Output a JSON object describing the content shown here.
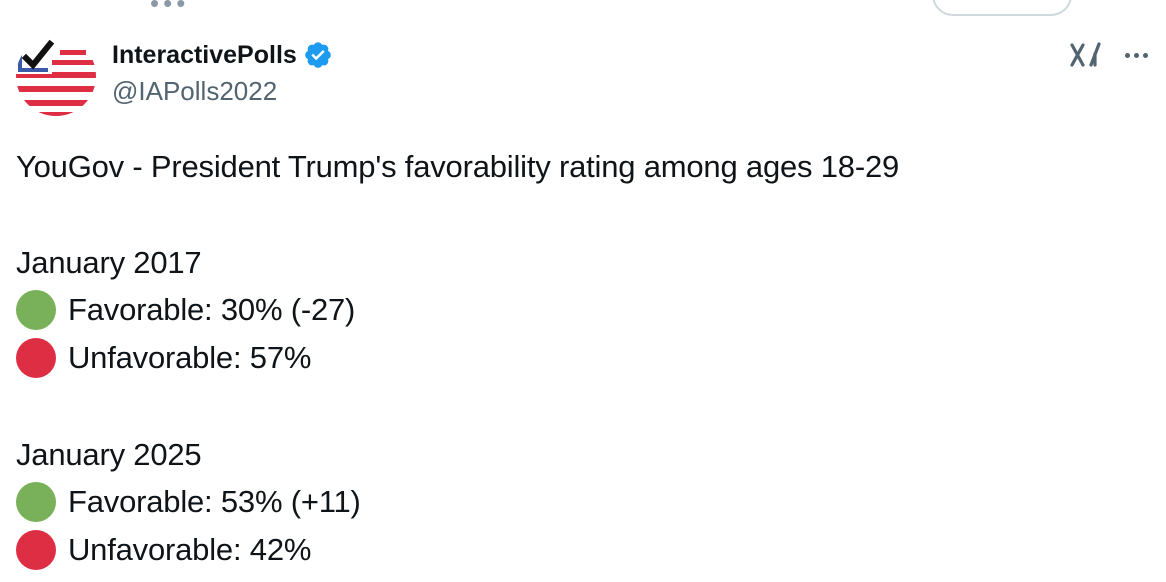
{
  "author": {
    "display_name": "InteractivePolls",
    "handle": "@IAPolls2022",
    "verified": true,
    "avatar_icon": "us-flag-checkmark-logo"
  },
  "actions": {
    "grok_icon": "grok-icon",
    "more_icon": "more-icon"
  },
  "tweet": {
    "headline": "YouGov - President Trump's favorability rating among ages 18-29",
    "sections": [
      {
        "period": "January 2017",
        "favorable": "Favorable: 30% (-27)",
        "unfavorable": "Unfavorable: 57%"
      },
      {
        "period": "January 2025",
        "favorable": "Favorable: 53% (+11)",
        "unfavorable": "Unfavorable: 42%"
      }
    ]
  },
  "colors": {
    "favorable_dot": "#78b159",
    "unfavorable_dot": "#dd2e44",
    "verified_badge": "#1d9bf0",
    "text_primary": "#0f1419",
    "text_secondary": "#536471"
  }
}
